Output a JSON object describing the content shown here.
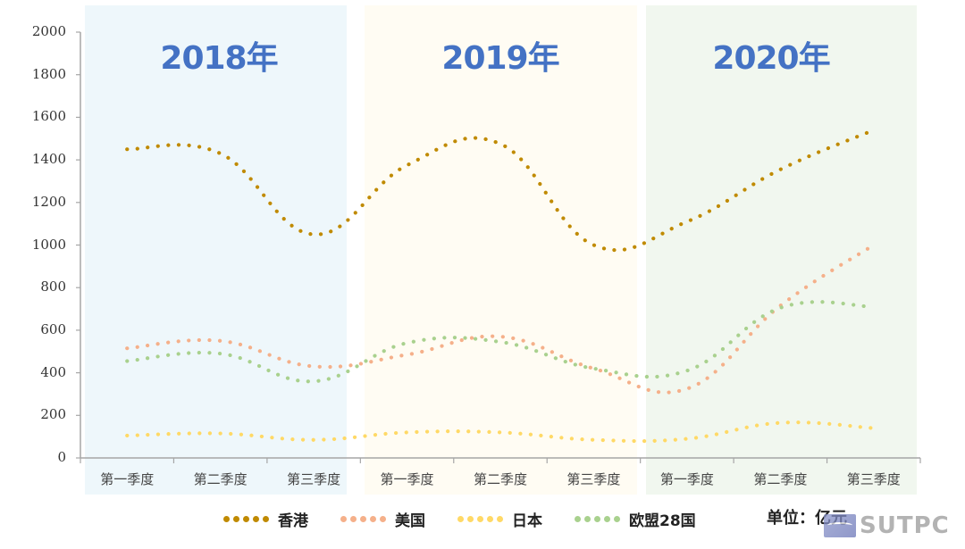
{
  "chart_data": {
    "type": "line",
    "title": "",
    "xlabel": "",
    "ylabel": "",
    "unit_label": "单位：亿元",
    "ylim": [
      0,
      2000
    ],
    "yticks": [
      0,
      200,
      400,
      600,
      800,
      1000,
      1200,
      1400,
      1600,
      1800,
      2000
    ],
    "grid": false,
    "legend_position": "bottom",
    "groups": [
      {
        "label": "2018年",
        "bg": "#eef7fb"
      },
      {
        "label": "2019年",
        "bg": "#fffcf3"
      },
      {
        "label": "2020年",
        "bg": "#f1f7ef"
      }
    ],
    "categories": [
      "第一季度",
      "第二季度",
      "第三季度",
      "第一季度",
      "第二季度",
      "第三季度",
      "第一季度",
      "第二季度",
      "第三季度"
    ],
    "series": [
      {
        "name": "香港",
        "color": "#c08a00",
        "values": [
          1450,
          1430,
          1050,
          1375,
          1475,
          1000,
          1110,
          1355,
          1540
        ]
      },
      {
        "name": "美国",
        "color": "#f5b08a",
        "values": [
          515,
          550,
          430,
          485,
          570,
          420,
          325,
          715,
          1000
        ]
      },
      {
        "name": "日本",
        "color": "#ffd966",
        "values": [
          105,
          115,
          85,
          120,
          120,
          85,
          90,
          165,
          140
        ]
      },
      {
        "name": "欧盟28国",
        "color": "#a9d18e",
        "values": [
          455,
          490,
          360,
          540,
          545,
          420,
          410,
          705,
          710
        ]
      }
    ]
  },
  "legend": {
    "items": [
      {
        "label": "香港",
        "color": "#c08a00"
      },
      {
        "label": "美国",
        "color": "#f5b08a"
      },
      {
        "label": "日本",
        "color": "#ffd966"
      },
      {
        "label": "欧盟28国",
        "color": "#a9d18e"
      }
    ]
  },
  "unit": "单位：亿元",
  "watermark": "SUTPC"
}
